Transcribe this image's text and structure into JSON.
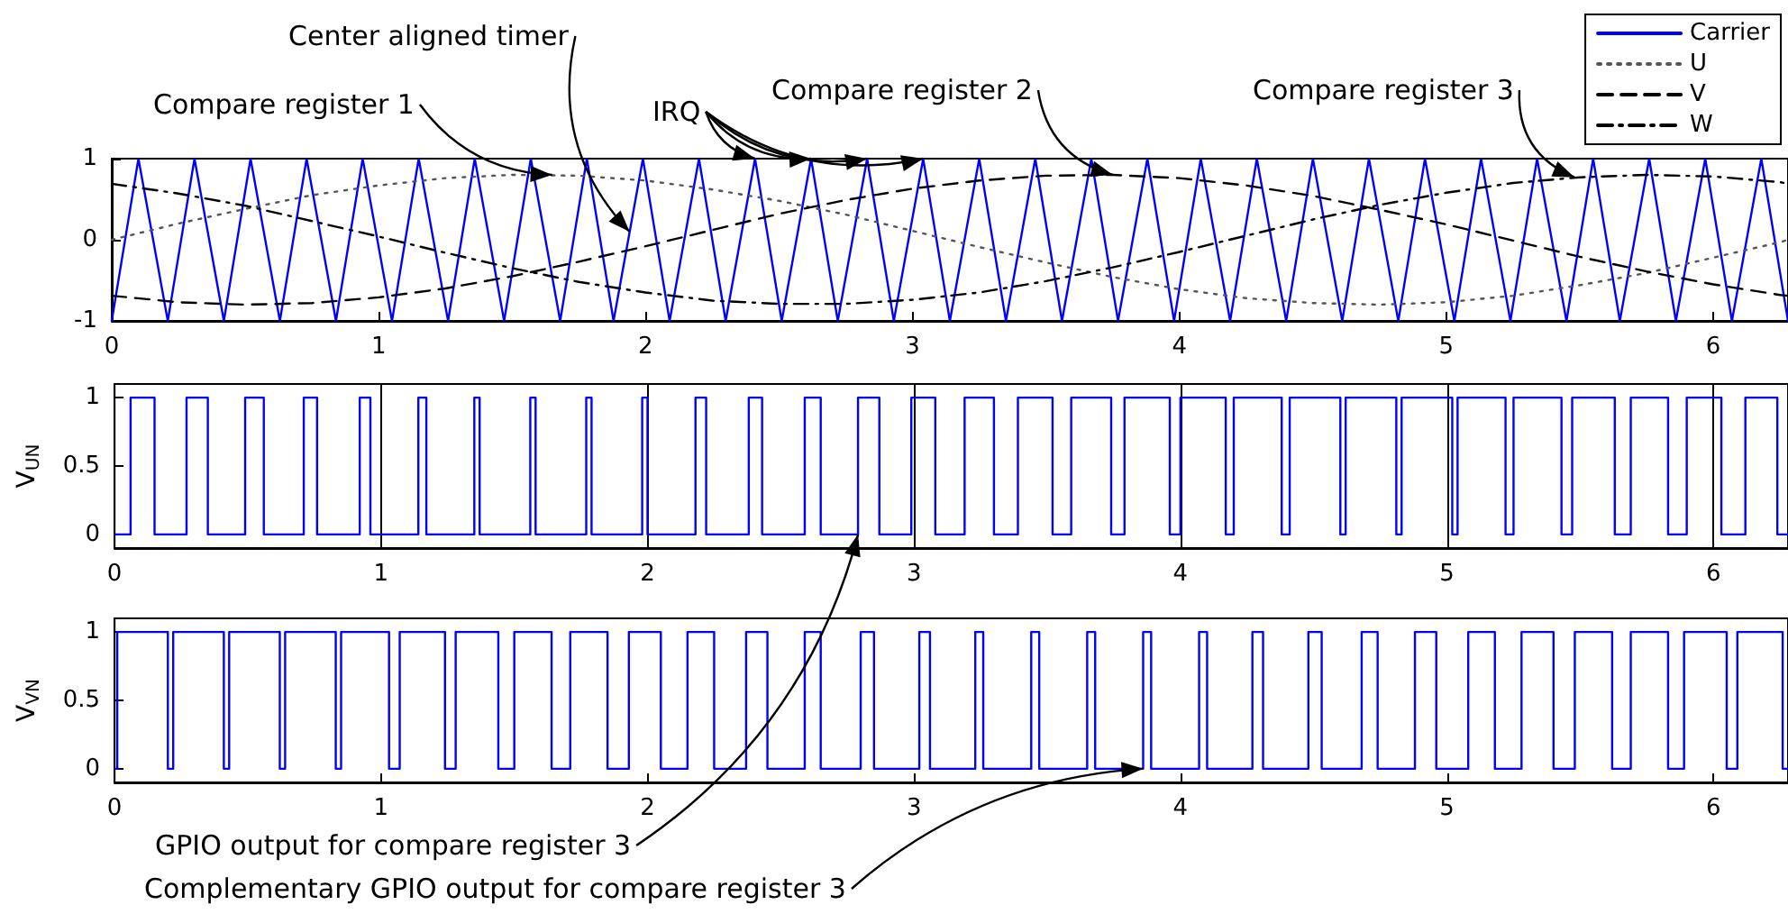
{
  "chart_data": [
    {
      "type": "line",
      "xlim": [
        0,
        6.28
      ],
      "xticks": [
        0,
        1,
        2,
        3,
        4,
        5,
        6
      ],
      "ylim": [
        -1,
        1
      ],
      "yticks": [
        -1,
        0,
        1
      ],
      "legend": "top right",
      "marker": "none",
      "series": [
        {
          "name": "Carrier",
          "color": "#0000ff",
          "line_style": "solid",
          "x": [
            0,
            0.1,
            0.21,
            0.31,
            0.42,
            0.52,
            0.63,
            0.73,
            0.84,
            0.94,
            1.05,
            1.15,
            1.26,
            1.36,
            1.47,
            1.57,
            1.68,
            1.78,
            1.88,
            1.99,
            2.09,
            2.2,
            2.3,
            2.41,
            2.51,
            2.62,
            2.72,
            2.83,
            2.93,
            3.04,
            3.14,
            3.25,
            3.35,
            3.46,
            3.56,
            3.67,
            3.77,
            3.88,
            3.98,
            4.08,
            4.19,
            4.29,
            4.4,
            4.5,
            4.61,
            4.71,
            4.82,
            4.92,
            5.03,
            5.13,
            5.24,
            5.34,
            5.45,
            5.55,
            5.65,
            5.76,
            5.86,
            5.97,
            6.07,
            6.18,
            6.28
          ],
          "values": [
            -1,
            1,
            -1,
            1,
            -1,
            1,
            -1,
            1,
            -1,
            1,
            -1,
            1,
            -1,
            1,
            -1,
            1,
            -1,
            1,
            -1,
            1,
            -1,
            1,
            -1,
            1,
            -1,
            1,
            -1,
            1,
            -1,
            1,
            -1,
            1,
            -1,
            1,
            -1,
            1,
            -1,
            1,
            -1,
            1,
            -1,
            1,
            -1,
            1,
            -1,
            1,
            -1,
            1,
            -1,
            1,
            -1,
            1,
            -1,
            1,
            -1,
            1,
            -1,
            1,
            -1,
            1,
            -1
          ]
        },
        {
          "name": "U",
          "color": "#555555",
          "line_style": "dotted",
          "x": [
            0,
            0.25,
            0.5,
            0.75,
            1,
            1.25,
            1.5,
            1.75,
            2,
            2.25,
            2.5,
            2.75,
            3,
            3.25,
            3.5,
            3.75,
            4,
            4.25,
            4.5,
            4.75,
            5,
            5.25,
            5.5,
            5.75,
            6,
            6.25,
            6.28
          ],
          "values": [
            0,
            0.2,
            0.38,
            0.55,
            0.67,
            0.76,
            0.8,
            0.79,
            0.73,
            0.62,
            0.48,
            0.31,
            0.11,
            -0.09,
            -0.28,
            -0.46,
            -0.61,
            -0.72,
            -0.78,
            -0.8,
            -0.77,
            -0.69,
            -0.56,
            -0.41,
            -0.22,
            -0.03,
            0
          ]
        },
        {
          "name": "V",
          "color": "#000000",
          "line_style": "dashed",
          "x": [
            0,
            0.25,
            0.5,
            0.75,
            1,
            1.25,
            1.5,
            1.75,
            2,
            2.25,
            2.5,
            2.75,
            3,
            3.25,
            3.5,
            3.75,
            4,
            4.25,
            4.5,
            4.75,
            5,
            5.25,
            5.5,
            5.75,
            6,
            6.25,
            6.28
          ],
          "values": [
            -0.69,
            -0.77,
            -0.8,
            -0.78,
            -0.71,
            -0.6,
            -0.45,
            -0.27,
            -0.08,
            0.12,
            0.32,
            0.49,
            0.63,
            0.73,
            0.79,
            0.8,
            0.76,
            0.67,
            0.54,
            0.37,
            0.19,
            -0.01,
            -0.21,
            -0.39,
            -0.55,
            -0.68,
            -0.69
          ]
        },
        {
          "name": "W",
          "color": "#000000",
          "line_style": "dashdot",
          "x": [
            0,
            0.25,
            0.5,
            0.75,
            1,
            1.25,
            1.5,
            1.75,
            2,
            2.25,
            2.5,
            2.75,
            3,
            3.25,
            3.5,
            3.75,
            4,
            4.25,
            4.5,
            4.75,
            5,
            5.25,
            5.5,
            5.75,
            6,
            6.25,
            6.28
          ],
          "values": [
            0.69,
            0.57,
            0.42,
            0.23,
            0.04,
            -0.16,
            -0.35,
            -0.52,
            -0.65,
            -0.75,
            -0.79,
            -0.79,
            -0.74,
            -0.65,
            -0.51,
            -0.34,
            -0.15,
            0.05,
            0.25,
            0.43,
            0.58,
            0.7,
            0.77,
            0.8,
            0.78,
            0.71,
            0.69
          ]
        }
      ],
      "annotations": [
        {
          "text": "Center aligned timer",
          "x": 1.94,
          "y": 0.1
        },
        {
          "text": "Compare register 1",
          "x": 1.65,
          "y": 0.8
        },
        {
          "text": "IRQ",
          "x": 2.41,
          "y": 1
        },
        {
          "text": "Compare register 2",
          "x": 3.75,
          "y": 0.8
        },
        {
          "text": "Compare register 3",
          "x": 5.48,
          "y": 0.77
        }
      ]
    },
    {
      "type": "step",
      "ylabel": "V$_{UN}$",
      "xlim": [
        0,
        6.28
      ],
      "xticks": [
        0,
        1,
        2,
        3,
        4,
        5,
        6
      ],
      "ylim": [
        -0.1,
        1.1
      ],
      "yticks": [
        0,
        0.5,
        1
      ],
      "grid": "x",
      "marker": "none",
      "color": "#0000ff",
      "x": [
        0,
        0.06,
        0.15,
        0.27,
        0.35,
        0.49,
        0.56,
        0.71,
        0.76,
        0.92,
        0.96,
        1.14,
        1.17,
        1.35,
        1.37,
        1.56,
        1.58,
        1.77,
        1.79,
        1.98,
        2.0,
        2.18,
        2.22,
        2.38,
        2.43,
        2.59,
        2.65,
        2.79,
        2.87,
        2.99,
        3.08,
        3.19,
        3.3,
        3.39,
        3.52,
        3.59,
        3.74,
        3.79,
        3.96,
        4.0,
        4.17,
        4.2,
        4.38,
        4.41,
        4.6,
        4.62,
        4.81,
        4.83,
        5.02,
        5.04,
        5.22,
        5.25,
        5.43,
        5.47,
        5.63,
        5.69,
        5.83,
        5.9,
        6.03,
        6.12,
        6.24,
        6.28
      ],
      "values": [
        0,
        1,
        0,
        1,
        0,
        1,
        0,
        1,
        0,
        1,
        0,
        1,
        0,
        1,
        0,
        1,
        0,
        1,
        0,
        1,
        0,
        1,
        0,
        1,
        0,
        1,
        0,
        1,
        0,
        1,
        0,
        1,
        0,
        1,
        0,
        1,
        0,
        1,
        0,
        1,
        0,
        1,
        0,
        1,
        0,
        1,
        0,
        1,
        0,
        1,
        0,
        1,
        0,
        1,
        0,
        1,
        0,
        1,
        0,
        1,
        0,
        0
      ],
      "annotations": [
        {
          "text": "GPIO output for compare register 3",
          "x": 2.79,
          "y": 0
        }
      ]
    },
    {
      "type": "step",
      "ylabel": "V$_{VN}$",
      "xlim": [
        0,
        6.28
      ],
      "xticks": [
        0,
        1,
        2,
        3,
        4,
        5,
        6
      ],
      "ylim": [
        -0.1,
        1.1
      ],
      "yticks": [
        0,
        0.5,
        1
      ],
      "marker": "none",
      "color": "#0000ff",
      "x": [
        0,
        0.01,
        0.2,
        0.22,
        0.41,
        0.43,
        0.62,
        0.64,
        0.83,
        0.85,
        1.03,
        1.07,
        1.24,
        1.28,
        1.44,
        1.5,
        1.64,
        1.71,
        1.85,
        1.93,
        2.05,
        2.15,
        2.25,
        2.37,
        2.45,
        2.59,
        2.65,
        2.8,
        2.85,
        3.02,
        3.06,
        3.23,
        3.26,
        3.44,
        3.47,
        3.65,
        3.68,
        3.86,
        3.89,
        4.07,
        4.1,
        4.27,
        4.31,
        4.48,
        4.53,
        4.68,
        4.74,
        4.88,
        4.96,
        5.08,
        5.18,
        5.28,
        5.4,
        5.48,
        5.62,
        5.69,
        5.83,
        5.89,
        6.05,
        6.09,
        6.26,
        6.28
      ],
      "values": [
        0,
        1,
        0,
        1,
        0,
        1,
        0,
        1,
        0,
        1,
        0,
        1,
        0,
        1,
        0,
        1,
        0,
        1,
        0,
        1,
        0,
        1,
        0,
        1,
        0,
        1,
        0,
        1,
        0,
        1,
        0,
        1,
        0,
        1,
        0,
        1,
        0,
        1,
        0,
        1,
        0,
        1,
        0,
        1,
        0,
        1,
        0,
        1,
        0,
        1,
        0,
        1,
        0,
        1,
        0,
        1,
        0,
        1,
        0,
        1,
        0,
        0
      ],
      "annotations": [
        {
          "text": "Complementary GPIO output for compare register 3",
          "x": 3.86,
          "y": 0
        }
      ]
    }
  ]
}
